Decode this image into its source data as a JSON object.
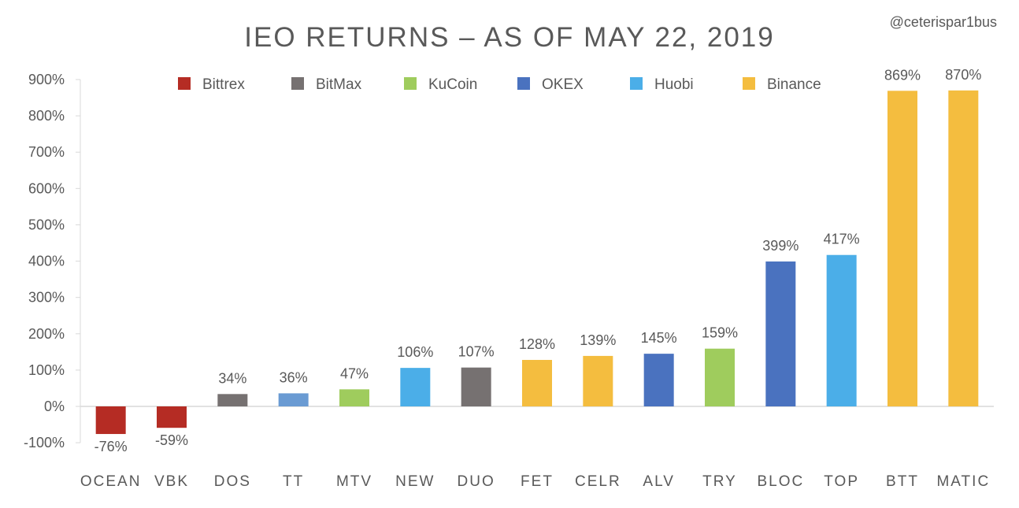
{
  "chart_data": {
    "type": "bar",
    "title": "IEO RETURNS – AS OF MAY 22, 2019",
    "watermark": "@ceterispar1bus",
    "xlabel": "",
    "ylabel": "",
    "ylim": [
      -100,
      900
    ],
    "yticks": [
      -100,
      0,
      100,
      200,
      300,
      400,
      500,
      600,
      700,
      800,
      900
    ],
    "ytick_labels": [
      "-100%",
      "0%",
      "100%",
      "200%",
      "300%",
      "400%",
      "500%",
      "600%",
      "700%",
      "800%",
      "900%"
    ],
    "grid": false,
    "legend_position": "top",
    "legend": [
      {
        "name": "Bittrex",
        "color": "#B52C24"
      },
      {
        "name": "BitMax",
        "color": "#767171"
      },
      {
        "name": "KuCoin",
        "color": "#9FCC5D"
      },
      {
        "name": "OKEX",
        "color": "#4A72BF"
      },
      {
        "name": "Huobi",
        "color": "#4BAEE8"
      },
      {
        "name": "Binance",
        "color": "#F4BD3F"
      }
    ],
    "categories": [
      "OCEAN",
      "VBK",
      "DOS",
      "TT",
      "MTV",
      "NEW",
      "DUO",
      "FET",
      "CELR",
      "ALV",
      "TRY",
      "BLOC",
      "TOP",
      "BTT",
      "MATIC"
    ],
    "values": [
      -76,
      -59,
      34,
      36,
      47,
      106,
      107,
      128,
      139,
      145,
      159,
      399,
      417,
      869,
      870
    ],
    "value_labels": [
      "-76%",
      "-59%",
      "34%",
      "36%",
      "47%",
      "106%",
      "107%",
      "128%",
      "139%",
      "145%",
      "159%",
      "399%",
      "417%",
      "869%",
      "870%"
    ],
    "colors": [
      "#B52C24",
      "#B52C24",
      "#767171",
      "#6A9BD3",
      "#9FCC5D",
      "#4BAEE8",
      "#767171",
      "#F4BD3F",
      "#F4BD3F",
      "#4A72BF",
      "#9FCC5D",
      "#4A72BF",
      "#4BAEE8",
      "#F4BD3F",
      "#F4BD3F"
    ]
  }
}
